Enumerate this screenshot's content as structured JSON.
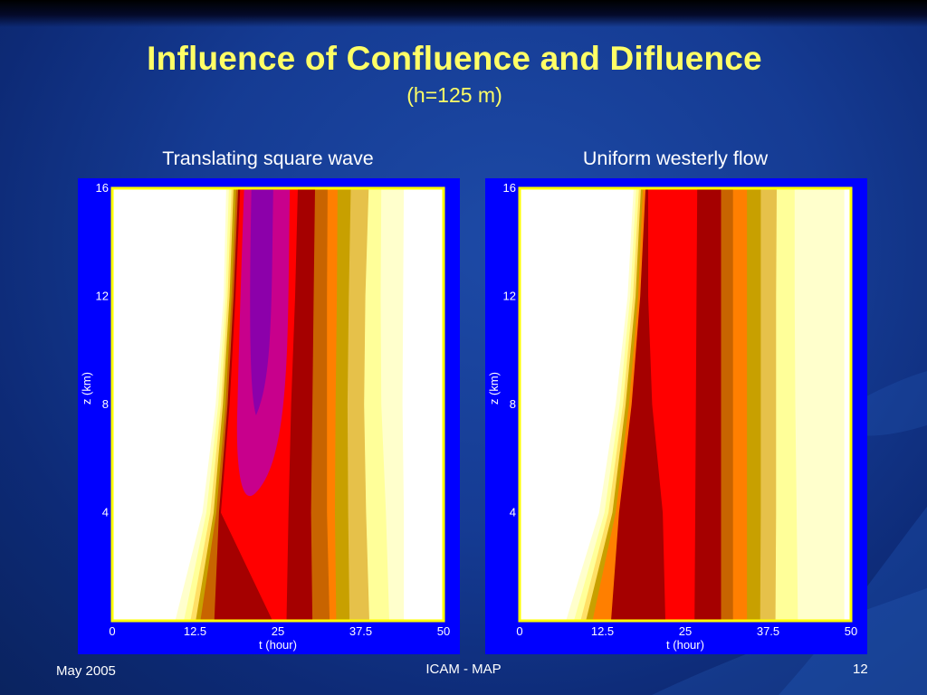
{
  "slide": {
    "title": "Influence of Confluence and Difluence",
    "subtitle": "(h=125 m)",
    "footer_left": "May 2005",
    "footer_center": "ICAM - MAP",
    "footer_right": "12"
  },
  "colors": {
    "title": "#ffff66",
    "frame": "#0000ff",
    "white": "#ffffff",
    "pale_yellow": "#ffffcc",
    "light_yellow": "#ffff99",
    "yellow": "#ffe066",
    "gold": "#e6c14a",
    "mustard": "#c8a000",
    "orange": "#ff7f00",
    "brown": "#c86400",
    "dark_red": "#a50000",
    "red": "#ff0000",
    "magenta": "#c8008c",
    "purple": "#8c00aa"
  },
  "chart_data": [
    {
      "type": "heatmap",
      "title": "Translating square wave",
      "xlabel": "t (hour)",
      "ylabel": "z (km)",
      "xlim": [
        0,
        50
      ],
      "ylim": [
        0,
        16
      ],
      "xticks": [
        "0",
        "12.5",
        "25",
        "37.5",
        "50"
      ],
      "yticks": [
        "4",
        "8",
        "12",
        "16"
      ],
      "description": "filled contour bands; boundary t-values listed at z = 0, 4, 8, 12, 16",
      "z_levels": [
        0,
        4,
        8,
        12,
        16
      ],
      "bands": [
        {
          "color": "pale_yellow",
          "left": [
            9.5,
            13.6,
            15.6,
            16.8,
            17.2
          ]
        },
        {
          "color": "light_yellow",
          "left": [
            10.8,
            14.2,
            16.0,
            17.1,
            17.6
          ]
        },
        {
          "color": "yellow",
          "left": [
            11.8,
            14.8,
            16.4,
            17.4,
            18.0
          ]
        },
        {
          "color": "mustard",
          "left": [
            12.6,
            15.3,
            16.7,
            17.7,
            18.3
          ]
        },
        {
          "color": "brown",
          "left": [
            13.3,
            15.7,
            17.1,
            18.0,
            18.7
          ]
        },
        {
          "color": "dark_red",
          "left": [
            15.4,
            16.1,
            17.4,
            18.3,
            19.0
          ]
        },
        {
          "color": "red",
          "left": [
            24.2,
            16.4,
            17.7,
            18.6,
            19.3
          ]
        },
        {
          "color": "dark_red",
          "left": [
            26.3,
            26.6,
            27.0,
            27.6,
            28.0
          ]
        },
        {
          "color": "brown",
          "left": [
            30.2,
            30.0,
            30.2,
            30.4,
            30.6
          ]
        },
        {
          "color": "orange",
          "left": [
            32.8,
            32.4,
            32.4,
            32.4,
            32.5
          ]
        },
        {
          "color": "mustard",
          "left": [
            33.8,
            33.6,
            33.7,
            33.9,
            34.0
          ]
        },
        {
          "color": "gold",
          "left": [
            35.8,
            35.6,
            35.5,
            35.7,
            36.0
          ]
        },
        {
          "color": "light_yellow",
          "left": [
            38.8,
            38.3,
            38.0,
            38.2,
            38.7
          ]
        },
        {
          "color": "pale_yellow",
          "left": [
            41.8,
            41.3,
            40.6,
            40.5,
            40.6
          ]
        },
        {
          "color": "white",
          "left": [
            44.0,
            44.0,
            43.8,
            43.9,
            44.0
          ]
        }
      ],
      "core": [
        {
          "color": "magenta",
          "top": 16,
          "bottom": 4.5
        },
        {
          "color": "purple",
          "top": 16,
          "bottom": 7.6
        }
      ]
    },
    {
      "type": "heatmap",
      "title": "Uniform westerly flow",
      "xlabel": "t (hour)",
      "ylabel": "z (km)",
      "xlim": [
        0,
        50
      ],
      "ylim": [
        0,
        16
      ],
      "xticks": [
        "0",
        "12.5",
        "25",
        "37.5",
        "50"
      ],
      "yticks": [
        "4",
        "8",
        "12",
        "16"
      ],
      "description": "filled contour bands; boundary t-values listed at z = 0, 4, 8, 12, 16",
      "z_levels": [
        0,
        4,
        8,
        12,
        16
      ],
      "bands": [
        {
          "color": "pale_yellow",
          "left": [
            7.0,
            12.0,
            14.5,
            16.3,
            17.2
          ]
        },
        {
          "color": "light_yellow",
          "left": [
            8.2,
            12.8,
            15.1,
            16.7,
            17.6
          ]
        },
        {
          "color": "yellow",
          "left": [
            9.2,
            13.4,
            15.6,
            17.1,
            18.0
          ]
        },
        {
          "color": "mustard",
          "left": [
            10.0,
            14.0,
            16.0,
            17.5,
            18.3
          ]
        },
        {
          "color": "orange",
          "left": [
            11.0,
            14.5,
            16.5,
            17.9,
            18.6
          ]
        },
        {
          "color": "dark_red",
          "left": [
            13.8,
            15.0,
            16.9,
            18.2,
            19.0
          ]
        },
        {
          "color": "red",
          "left": [
            22.0,
            21.6,
            20.0,
            19.4,
            19.4
          ]
        },
        {
          "color": "dark_red",
          "left": [
            26.4,
            26.5,
            26.6,
            26.7,
            26.8
          ]
        },
        {
          "color": "brown",
          "left": [
            30.4,
            30.4,
            30.4,
            30.4,
            30.4
          ]
        },
        {
          "color": "orange",
          "left": [
            32.2,
            32.2,
            32.2,
            32.2,
            32.2
          ]
        },
        {
          "color": "mustard",
          "left": [
            34.3,
            34.3,
            34.3,
            34.3,
            34.3
          ]
        },
        {
          "color": "gold",
          "left": [
            36.3,
            36.4,
            36.4,
            36.4,
            36.4
          ]
        },
        {
          "color": "light_yellow",
          "left": [
            38.6,
            38.7,
            38.7,
            38.7,
            38.8
          ]
        },
        {
          "color": "pale_yellow",
          "left": [
            42.0,
            41.8,
            41.6,
            41.5,
            41.5
          ]
        },
        {
          "color": "white",
          "left": [
            49.0,
            49.0,
            49.0,
            49.0,
            49.0
          ]
        }
      ],
      "core": []
    }
  ]
}
